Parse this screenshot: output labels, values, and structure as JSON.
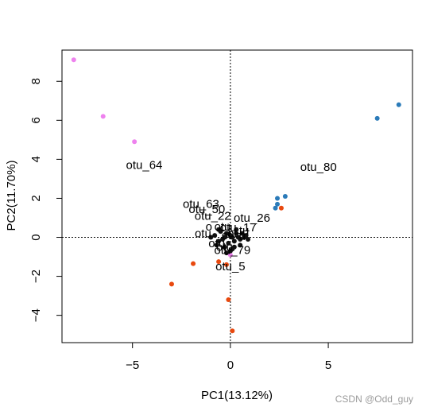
{
  "chart_data": {
    "type": "scatter",
    "title": "",
    "xlabel": "PC1(13.12%)",
    "ylabel": "PC2(11.70%)",
    "xlim": [
      -8.6,
      9.3
    ],
    "ylim": [
      -5.4,
      9.6
    ],
    "x_ticks": [
      -5,
      0,
      5
    ],
    "y_ticks": [
      -4,
      -2,
      0,
      2,
      4,
      6,
      8
    ],
    "reference_lines": {
      "x": 0,
      "y": 0,
      "style": "dotted"
    },
    "colors": {
      "violet": "#EE82EE",
      "blue": "#2B7BB9",
      "orange": "#E8490F",
      "dark": "#111111"
    },
    "series": [
      {
        "color": "violet",
        "points": [
          [
            -8.0,
            9.1
          ],
          [
            -6.5,
            6.2
          ],
          [
            -4.9,
            4.9
          ],
          [
            0.0,
            -0.9
          ]
        ]
      },
      {
        "color": "blue",
        "points": [
          [
            8.6,
            6.8
          ],
          [
            7.5,
            6.1
          ],
          [
            2.8,
            2.1
          ],
          [
            2.4,
            2.0
          ],
          [
            2.4,
            1.7
          ],
          [
            2.3,
            1.5
          ]
        ]
      },
      {
        "color": "orange",
        "points": [
          [
            2.6,
            1.5
          ],
          [
            -1.9,
            -1.35
          ],
          [
            -3.0,
            -2.4
          ],
          [
            -0.6,
            -1.25
          ],
          [
            -0.1,
            -3.2
          ],
          [
            0.1,
            -4.8
          ],
          [
            -0.2,
            -1.4
          ]
        ]
      }
    ],
    "cluster": {
      "color": "dark",
      "points": [
        [
          -1.0,
          0.0
        ],
        [
          -0.8,
          0.1
        ],
        [
          -0.6,
          -0.2
        ],
        [
          -0.5,
          0.3
        ],
        [
          -0.4,
          -0.1
        ],
        [
          -0.3,
          0.0
        ],
        [
          -0.2,
          0.2
        ],
        [
          -0.1,
          -0.3
        ],
        [
          0.0,
          0.1
        ],
        [
          0.1,
          0.0
        ],
        [
          0.2,
          -0.2
        ],
        [
          0.3,
          0.2
        ],
        [
          0.4,
          0.0
        ],
        [
          0.5,
          -0.1
        ],
        [
          0.6,
          0.2
        ],
        [
          0.7,
          0.0
        ],
        [
          0.8,
          0.1
        ],
        [
          0.9,
          -0.1
        ],
        [
          -0.7,
          -0.4
        ],
        [
          -0.3,
          -0.5
        ],
        [
          0.2,
          -0.5
        ],
        [
          0.5,
          -0.4
        ],
        [
          -0.6,
          0.4
        ],
        [
          0.3,
          0.4
        ],
        [
          0.0,
          -0.7
        ],
        [
          -0.2,
          -0.8
        ],
        [
          0.1,
          -0.6
        ]
      ]
    },
    "annotations": [
      {
        "text": "otu_64",
        "x": -4.4,
        "y": 3.5
      },
      {
        "text": "otu_80",
        "x": 4.5,
        "y": 3.4
      },
      {
        "text": "otu_63",
        "x": -1.5,
        "y": 1.5
      },
      {
        "text": "otu_50",
        "x": -1.2,
        "y": 1.25
      },
      {
        "text": "otu_22",
        "x": -0.9,
        "y": 0.9
      },
      {
        "text": "otu_26",
        "x": 1.1,
        "y": 0.8
      },
      {
        "text": "otu_5",
        "x": 0.0,
        "y": -1.7
      },
      {
        "text": "otu_79",
        "x": 0.1,
        "y": -0.85
      }
    ],
    "cluster_labels": [
      {
        "text": "otu",
        "x": -1.4,
        "y": 0.0
      },
      {
        "text": "otu",
        "x": -0.4,
        "y": 0.35
      },
      {
        "text": "ot",
        "x": -0.2,
        "y": -0.1
      },
      {
        "text": "otu",
        "x": -0.7,
        "y": -0.5
      },
      {
        "text": "otu",
        "x": -0.3,
        "y": -0.7
      },
      {
        "text": "otu_17",
        "x": 0.4,
        "y": 0.3
      },
      {
        "text": "ot",
        "x": 0.1,
        "y": 0.0
      },
      {
        "text": "u",
        "x": 0.6,
        "y": -0.15
      },
      {
        "text": "o",
        "x": -1.1,
        "y": 0.35
      },
      {
        "text": "tu",
        "x": 0.7,
        "y": 0.15
      }
    ],
    "legend": "none",
    "grid": false
  },
  "watermark": "CSDN @Odd_guy"
}
